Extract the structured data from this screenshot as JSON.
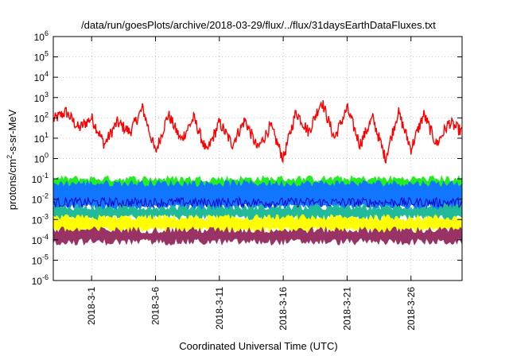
{
  "chart_data": {
    "type": "line",
    "title": "/data/run/goesPlots/archive/2018-03-29/flux/../flux/31daysEarthDataFluxes.txt",
    "xlabel": "Coordinated Universal Time (UTC)",
    "ylabel_parts": [
      "protons/cm",
      "2",
      "-s-sr-MeV"
    ],
    "x_range": [
      "2018-02-26",
      "2018-03-30"
    ],
    "x_ticks": [
      "2018-3-1",
      "2018-3-6",
      "2018-3-11",
      "2018-3-16",
      "2018-3-21",
      "2018-3-26"
    ],
    "x_tick_dates": [
      "2018-03-01",
      "2018-03-06",
      "2018-03-11",
      "2018-03-16",
      "2018-03-21",
      "2018-03-26"
    ],
    "y_scale": "log",
    "y_range": [
      1e-06,
      1000000.0
    ],
    "y_tick_exponents": [
      -6,
      -5,
      -4,
      -3,
      -2,
      -1,
      0,
      1,
      2,
      3,
      4,
      5,
      6
    ],
    "y_tick_base": "10",
    "grid": true,
    "series": [
      {
        "color": "#ff0000",
        "style": "line",
        "x": [
          "2018-02-26",
          "2018-02-27",
          "2018-02-28",
          "2018-03-01",
          "2018-03-02",
          "2018-03-03",
          "2018-03-04",
          "2018-03-05",
          "2018-03-06",
          "2018-03-07",
          "2018-03-08",
          "2018-03-09",
          "2018-03-10",
          "2018-03-11",
          "2018-03-12",
          "2018-03-13",
          "2018-03-14",
          "2018-03-15",
          "2018-03-16",
          "2018-03-17",
          "2018-03-18",
          "2018-03-19",
          "2018-03-20",
          "2018-03-21",
          "2018-03-22",
          "2018-03-23",
          "2018-03-24",
          "2018-03-25",
          "2018-03-26",
          "2018-03-27",
          "2018-03-28",
          "2018-03-29",
          "2018-03-30"
        ],
        "y": [
          80,
          200,
          30,
          100,
          5,
          60,
          20,
          300,
          2,
          150,
          8,
          100,
          2,
          60,
          5,
          80,
          3,
          40,
          1,
          200,
          20,
          700,
          10,
          300,
          5,
          100,
          1,
          200,
          3,
          150,
          5,
          60,
          20
        ]
      },
      {
        "color": "#22ee22",
        "style": "band",
        "y_low": 0.03,
        "y_high": 0.1
      },
      {
        "color": "#1177ff",
        "style": "band",
        "y_low": 0.004,
        "y_high": 0.06
      },
      {
        "color": "#0000cc",
        "style": "line",
        "y_low": 0.004,
        "y_high": 0.012
      },
      {
        "color": "#22bb99",
        "style": "band",
        "y_low": 0.0012,
        "y_high": 0.004
      },
      {
        "color": "#ffff00",
        "style": "band",
        "y_low": 0.0003,
        "y_high": 0.0012
      },
      {
        "color": "#993366",
        "style": "band",
        "y_low": 8e-05,
        "y_high": 0.0003
      }
    ]
  }
}
